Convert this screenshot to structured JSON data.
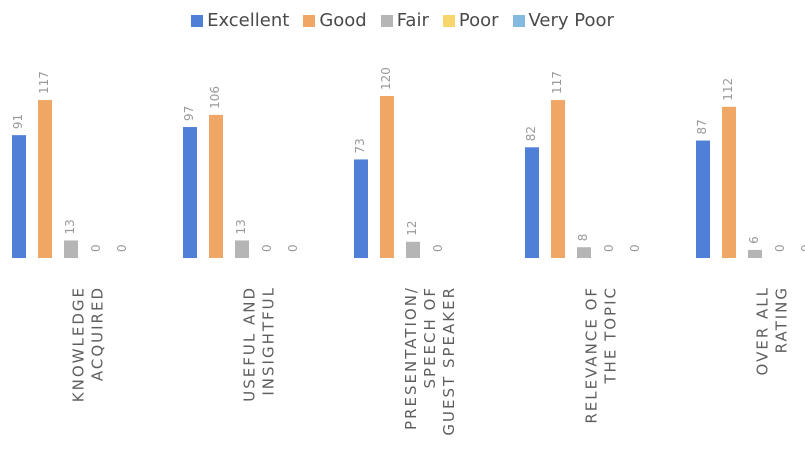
{
  "chart_data": {
    "type": "bar",
    "categories": [
      "KNOWLEDGE ACQUIRED",
      "USEFUL AND INSIGHTFUL",
      "PRESENTATION/ SPEECH OF GUEST SPEAKER",
      "RELEVANCE OF THE TOPIC",
      "OVER ALL RATING"
    ],
    "category_lines": [
      [
        "KNOWLEDGE",
        "ACQUIRED"
      ],
      [
        "USEFUL AND",
        "INSIGHTFUL"
      ],
      [
        "PRESENTATION/",
        "SPEECH OF",
        "GUEST SPEAKER"
      ],
      [
        "RELEVANCE OF",
        "THE TOPIC"
      ],
      [
        "OVER ALL",
        "RATING"
      ]
    ],
    "series": [
      {
        "name": "Excellent",
        "color": "#4f7fd6",
        "values": [
          91,
          97,
          73,
          82,
          87
        ]
      },
      {
        "name": "Good",
        "color": "#f0a766",
        "values": [
          117,
          106,
          120,
          117,
          112
        ]
      },
      {
        "name": "Fair",
        "color": "#b5b5b5",
        "values": [
          13,
          13,
          12,
          8,
          6
        ]
      },
      {
        "name": "Poor",
        "color": "#f7d56a",
        "values": [
          0,
          0,
          0,
          0,
          0
        ]
      },
      {
        "name": "Very Poor",
        "color": "#84b9e0",
        "values": [
          0,
          0,
          0,
          0,
          0
        ]
      }
    ],
    "data_labels": [
      [
        "91",
        "117",
        "13",
        "0",
        "0"
      ],
      [
        "97",
        "106",
        "13",
        "0",
        "0"
      ],
      [
        "73",
        "120",
        "12",
        "0",
        ""
      ],
      [
        "82",
        "117",
        "8",
        "0",
        "0"
      ],
      [
        "87",
        "112",
        "6",
        "0",
        "0"
      ]
    ],
    "ylim": [
      0,
      120
    ],
    "legend_position": "top",
    "grid": false
  }
}
